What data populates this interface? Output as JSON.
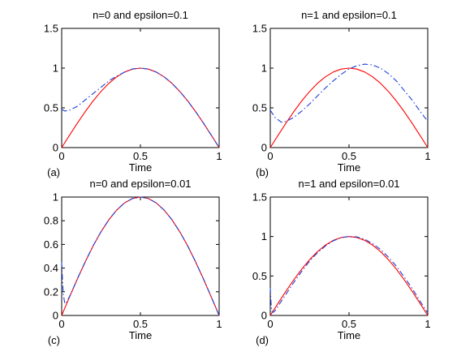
{
  "colors": {
    "exact": "#ff0000",
    "approx": "#1f3fd6",
    "axes": "#000000"
  },
  "chart_data": [
    {
      "type": "line",
      "title": "n=0 and epsilon=0.1",
      "xlabel": "Time",
      "panel_label": "(a)",
      "xlim": [
        0,
        1
      ],
      "ylim": [
        0,
        1.5
      ],
      "xticks": [
        "0",
        "0.5",
        "1"
      ],
      "yticks": [
        "0",
        "0.5",
        "1",
        "1.5"
      ],
      "grid": false,
      "series": [
        {
          "style": "solid",
          "color": "#ff0000",
          "x": [
            0,
            0.05,
            0.1,
            0.15,
            0.2,
            0.25,
            0.3,
            0.35,
            0.4,
            0.45,
            0.5,
            0.55,
            0.6,
            0.65,
            0.7,
            0.75,
            0.8,
            0.85,
            0.9,
            0.95,
            1
          ],
          "y": [
            0,
            0.156,
            0.309,
            0.454,
            0.588,
            0.707,
            0.809,
            0.891,
            0.951,
            0.988,
            1,
            0.988,
            0.951,
            0.891,
            0.809,
            0.707,
            0.588,
            0.454,
            0.309,
            0.156,
            0
          ]
        },
        {
          "style": "dashdot",
          "color": "#1f3fd6",
          "x": [
            0,
            0.02,
            0.05,
            0.1,
            0.15,
            0.2,
            0.25,
            0.3,
            0.35,
            0.4,
            0.45,
            0.5,
            0.55,
            0.6,
            0.65,
            0.7,
            0.75,
            0.8,
            0.85,
            0.9,
            0.95,
            1
          ],
          "y": [
            0.48,
            0.46,
            0.47,
            0.52,
            0.6,
            0.68,
            0.76,
            0.84,
            0.9,
            0.95,
            0.99,
            1,
            0.988,
            0.951,
            0.891,
            0.809,
            0.707,
            0.588,
            0.454,
            0.309,
            0.156,
            0
          ]
        }
      ]
    },
    {
      "type": "line",
      "title": "n=1 and epsilon=0.1",
      "xlabel": "Time",
      "panel_label": "(b)",
      "xlim": [
        0,
        1
      ],
      "ylim": [
        0,
        1.5
      ],
      "xticks": [
        "0",
        "0.5",
        "1"
      ],
      "yticks": [
        "0",
        "0.5",
        "1",
        "1.5"
      ],
      "grid": false,
      "series": [
        {
          "style": "solid",
          "color": "#ff0000",
          "x": [
            0,
            0.05,
            0.1,
            0.15,
            0.2,
            0.25,
            0.3,
            0.35,
            0.4,
            0.45,
            0.5,
            0.55,
            0.6,
            0.65,
            0.7,
            0.75,
            0.8,
            0.85,
            0.9,
            0.95,
            1
          ],
          "y": [
            0,
            0.156,
            0.309,
            0.454,
            0.588,
            0.707,
            0.809,
            0.891,
            0.951,
            0.988,
            1,
            0.988,
            0.951,
            0.891,
            0.809,
            0.707,
            0.588,
            0.454,
            0.309,
            0.156,
            0
          ]
        },
        {
          "style": "dashdot",
          "color": "#1f3fd6",
          "x": [
            0,
            0.03,
            0.07,
            0.1,
            0.15,
            0.2,
            0.25,
            0.3,
            0.35,
            0.4,
            0.45,
            0.5,
            0.55,
            0.6,
            0.65,
            0.7,
            0.75,
            0.8,
            0.85,
            0.9,
            0.95,
            1
          ],
          "y": [
            0.47,
            0.38,
            0.32,
            0.33,
            0.38,
            0.46,
            0.55,
            0.65,
            0.75,
            0.84,
            0.92,
            0.99,
            1.03,
            1.05,
            1.04,
            1.0,
            0.93,
            0.84,
            0.72,
            0.6,
            0.46,
            0.33
          ]
        }
      ]
    },
    {
      "type": "line",
      "title": "n=0 and epsilon=0.01",
      "xlabel": "Time",
      "panel_label": "(c)",
      "xlim": [
        0,
        1
      ],
      "ylim": [
        0,
        1
      ],
      "xticks": [
        "0",
        "0.5",
        "1"
      ],
      "yticks": [
        "0",
        "0.2",
        "0.4",
        "0.6",
        "0.8",
        "1"
      ],
      "grid": false,
      "series": [
        {
          "style": "solid",
          "color": "#ff0000",
          "x": [
            0,
            0.05,
            0.1,
            0.15,
            0.2,
            0.25,
            0.3,
            0.35,
            0.4,
            0.45,
            0.5,
            0.55,
            0.6,
            0.65,
            0.7,
            0.75,
            0.8,
            0.85,
            0.9,
            0.95,
            1
          ],
          "y": [
            0,
            0.156,
            0.309,
            0.454,
            0.588,
            0.707,
            0.809,
            0.891,
            0.951,
            0.988,
            1,
            0.988,
            0.951,
            0.891,
            0.809,
            0.707,
            0.588,
            0.454,
            0.309,
            0.156,
            0
          ]
        },
        {
          "style": "dashdot",
          "color": "#1f3fd6",
          "x": [
            0,
            0.005,
            0.01,
            0.02,
            0.03,
            0.05,
            0.1,
            0.15,
            0.2,
            0.25,
            0.3,
            0.35,
            0.4,
            0.45,
            0.5,
            0.55,
            0.6,
            0.65,
            0.7,
            0.75,
            0.8,
            0.85,
            0.9,
            0.95,
            1
          ],
          "y": [
            0.45,
            0.3,
            0.18,
            0.1,
            0.11,
            0.16,
            0.31,
            0.455,
            0.59,
            0.708,
            0.81,
            0.892,
            0.952,
            0.988,
            1,
            0.988,
            0.951,
            0.891,
            0.809,
            0.707,
            0.588,
            0.454,
            0.309,
            0.156,
            0
          ]
        }
      ]
    },
    {
      "type": "line",
      "title": "n=1 and epsilon=0.01",
      "xlabel": "Time",
      "panel_label": "(d)",
      "xlim": [
        0,
        1
      ],
      "ylim": [
        0,
        1.5
      ],
      "xticks": [
        "0",
        "0.5",
        "1"
      ],
      "yticks": [
        "0",
        "0.5",
        "1",
        "1.5"
      ],
      "grid": false,
      "series": [
        {
          "style": "solid",
          "color": "#ff0000",
          "x": [
            0,
            0.05,
            0.1,
            0.15,
            0.2,
            0.25,
            0.3,
            0.35,
            0.4,
            0.45,
            0.5,
            0.55,
            0.6,
            0.65,
            0.7,
            0.75,
            0.8,
            0.85,
            0.9,
            0.95,
            1
          ],
          "y": [
            0,
            0.156,
            0.309,
            0.454,
            0.588,
            0.707,
            0.809,
            0.891,
            0.951,
            0.988,
            1,
            0.988,
            0.951,
            0.891,
            0.809,
            0.707,
            0.588,
            0.454,
            0.309,
            0.156,
            0
          ]
        },
        {
          "style": "dashdot",
          "color": "#1f3fd6",
          "x": [
            0,
            0.005,
            0.01,
            0.02,
            0.03,
            0.05,
            0.1,
            0.15,
            0.2,
            0.25,
            0.3,
            0.35,
            0.4,
            0.45,
            0.5,
            0.55,
            0.6,
            0.65,
            0.7,
            0.75,
            0.8,
            0.85,
            0.9,
            0.95,
            1
          ],
          "y": [
            0.35,
            0.15,
            0.05,
            0.04,
            0.06,
            0.12,
            0.27,
            0.42,
            0.56,
            0.69,
            0.795,
            0.88,
            0.945,
            0.985,
            1,
            0.995,
            0.965,
            0.91,
            0.835,
            0.74,
            0.625,
            0.49,
            0.345,
            0.185,
            0.03
          ]
        }
      ]
    }
  ]
}
